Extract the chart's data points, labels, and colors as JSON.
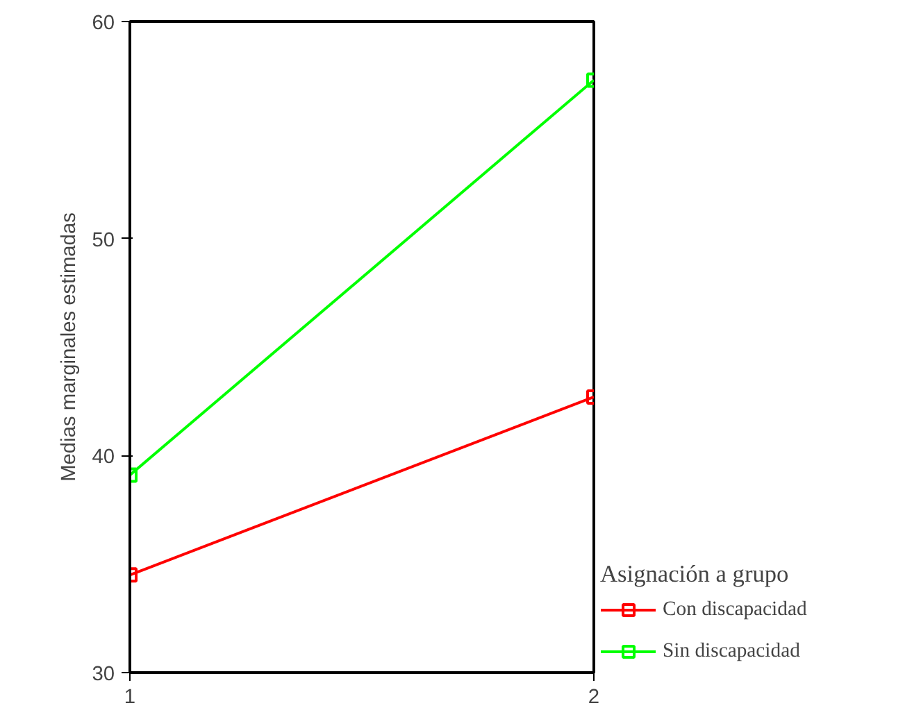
{
  "chart_data": {
    "type": "line",
    "ylabel": "Medias marginales estimadas",
    "legend_title": "Asignación a grupo",
    "x": [
      1,
      2
    ],
    "xlim": [
      1,
      2
    ],
    "xticks": [
      1,
      2
    ],
    "ylim": [
      30,
      60
    ],
    "yticks": [
      30,
      40,
      50,
      60
    ],
    "series": [
      {
        "name": "Con discapacidad",
        "color": "#ff0000",
        "values": [
          34.5,
          42.7
        ]
      },
      {
        "name": "Sin discapacidad",
        "color": "#00ff00",
        "values": [
          39.1,
          57.3
        ]
      }
    ],
    "marker": "square",
    "line_style": "solid",
    "grid": false,
    "legend": "right"
  }
}
